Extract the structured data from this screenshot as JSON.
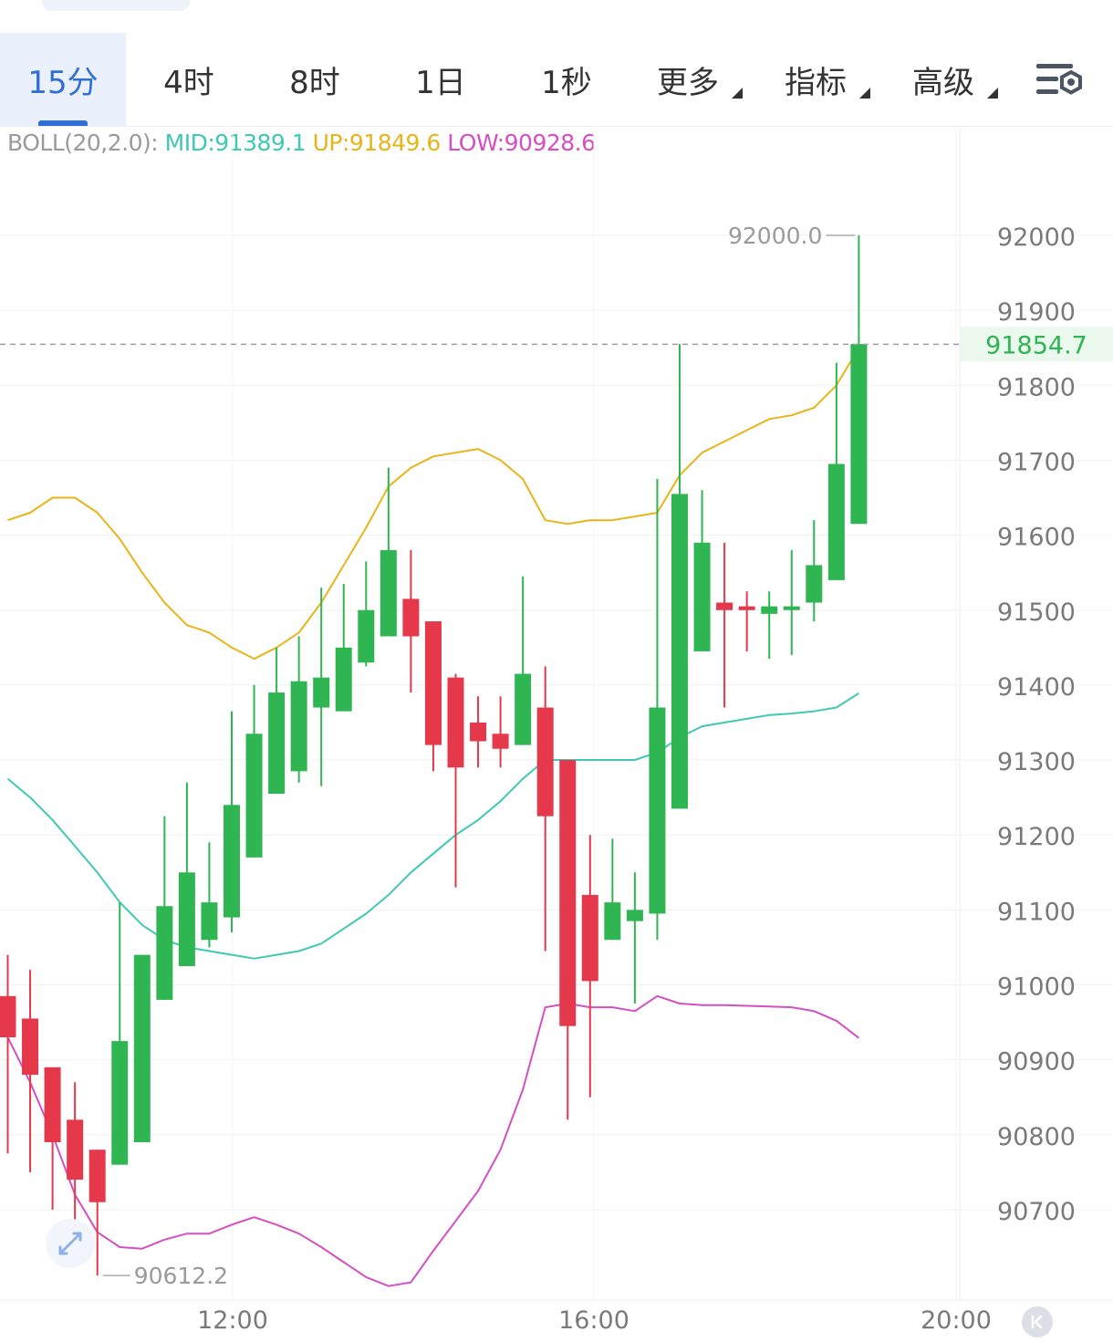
{
  "tabs": [
    {
      "label": "15分",
      "active": true,
      "dropdown": false
    },
    {
      "label": "4时",
      "active": false,
      "dropdown": false
    },
    {
      "label": "8时",
      "active": false,
      "dropdown": false
    },
    {
      "label": "1日",
      "active": false,
      "dropdown": false
    },
    {
      "label": "1秒",
      "active": false,
      "dropdown": false
    },
    {
      "label": "更多",
      "active": false,
      "dropdown": true
    },
    {
      "label": "指标",
      "active": false,
      "dropdown": true
    },
    {
      "label": "高级",
      "active": false,
      "dropdown": true
    }
  ],
  "settings_icon": "chart-settings-icon",
  "indicator": {
    "name": "BOLL(20,2.0):",
    "mid": "MID:91389.1",
    "up": "UP:91849.6",
    "low": "LOW:90928.6"
  },
  "colors": {
    "accent": "#2f6fd6",
    "up_candle": "#2fb552",
    "down_candle": "#e5394b",
    "mid_line": "#3fc9b4",
    "up_line": "#e8b41a",
    "low_line": "#d54fc2",
    "price_label": "#2fb552",
    "muted": "#9a9a9a"
  },
  "chart_data": {
    "type": "candlestick",
    "y_ticks": [
      "92000",
      "91900",
      "91800",
      "91700",
      "91600",
      "91500",
      "91400",
      "91300",
      "91200",
      "91100",
      "91000",
      "90900",
      "90800",
      "90700"
    ],
    "x_ticks": [
      "12:00",
      "16:00",
      "20:00"
    ],
    "current_price": "91854.7",
    "max_label": "92000.0",
    "min_label": "90612.2",
    "grid": true,
    "candles": [
      {
        "o": 90985,
        "h": 91040,
        "l": 90775,
        "c": 90930
      },
      {
        "o": 90955,
        "h": 91020,
        "l": 90750,
        "c": 90880
      },
      {
        "o": 90890,
        "h": 90890,
        "l": 90700,
        "c": 90790
      },
      {
        "o": 90820,
        "h": 90870,
        "l": 90680,
        "c": 90740
      },
      {
        "o": 90780,
        "h": 90780,
        "l": 90612.2,
        "c": 90710
      },
      {
        "o": 90760,
        "h": 91110,
        "l": 90760,
        "c": 90925
      },
      {
        "o": 90790,
        "h": 91030,
        "l": 90790,
        "c": 91040
      },
      {
        "o": 90980,
        "h": 91225,
        "l": 90980,
        "c": 91105
      },
      {
        "o": 91025,
        "h": 91270,
        "l": 91025,
        "c": 91150
      },
      {
        "o": 91060,
        "h": 91190,
        "l": 91050,
        "c": 91110
      },
      {
        "o": 91090,
        "h": 91365,
        "l": 91070,
        "c": 91240
      },
      {
        "o": 91170,
        "h": 91400,
        "l": 91170,
        "c": 91335
      },
      {
        "o": 91255,
        "h": 91450,
        "l": 91255,
        "c": 91390
      },
      {
        "o": 91285,
        "h": 91465,
        "l": 91270,
        "c": 91405
      },
      {
        "o": 91370,
        "h": 91530,
        "l": 91265,
        "c": 91410
      },
      {
        "o": 91365,
        "h": 91535,
        "l": 91365,
        "c": 91450
      },
      {
        "o": 91430,
        "h": 91565,
        "l": 91425,
        "c": 91500
      },
      {
        "o": 91465,
        "h": 91690,
        "l": 91465,
        "c": 91580
      },
      {
        "o": 91515,
        "h": 91580,
        "l": 91390,
        "c": 91465
      },
      {
        "o": 91485,
        "h": 91485,
        "l": 91285,
        "c": 91320
      },
      {
        "o": 91410,
        "h": 91415,
        "l": 91130,
        "c": 91290
      },
      {
        "o": 91350,
        "h": 91385,
        "l": 91290,
        "c": 91325
      },
      {
        "o": 91335,
        "h": 91385,
        "l": 91290,
        "c": 91315
      },
      {
        "o": 91320,
        "h": 91545,
        "l": 91320,
        "c": 91415
      },
      {
        "o": 91370,
        "h": 91425,
        "l": 91045,
        "c": 91225
      },
      {
        "o": 91300,
        "h": 91300,
        "l": 90820,
        "c": 90945
      },
      {
        "o": 91120,
        "h": 91200,
        "l": 90850,
        "c": 91005
      },
      {
        "o": 91060,
        "h": 91195,
        "l": 91060,
        "c": 91110
      },
      {
        "o": 91085,
        "h": 91150,
        "l": 90975,
        "c": 91100
      },
      {
        "o": 91095,
        "h": 91675,
        "l": 91060,
        "c": 91370
      },
      {
        "o": 91235,
        "h": 91855,
        "l": 91235,
        "c": 91655
      },
      {
        "o": 91445,
        "h": 91660,
        "l": 91445,
        "c": 91590
      },
      {
        "o": 91510,
        "h": 91590,
        "l": 91370,
        "c": 91500
      },
      {
        "o": 91505,
        "h": 91525,
        "l": 91445,
        "c": 91500
      },
      {
        "o": 91495,
        "h": 91525,
        "l": 91435,
        "c": 91505
      },
      {
        "o": 91500,
        "h": 91580,
        "l": 91440,
        "c": 91505
      },
      {
        "o": 91510,
        "h": 91620,
        "l": 91485,
        "c": 91560
      },
      {
        "o": 91540,
        "h": 91830,
        "l": 91540,
        "c": 91695
      },
      {
        "o": 91615,
        "h": 92000,
        "l": 91615,
        "c": 91855
      }
    ],
    "boll_up": [
      91620,
      91630,
      91650,
      91650,
      91630,
      91595,
      91550,
      91510,
      91480,
      91470,
      91450,
      91435,
      91450,
      91470,
      91510,
      91560,
      91610,
      91665,
      91690,
      91705,
      91710,
      91715,
      91700,
      91675,
      91620,
      91615,
      91620,
      91620,
      91625,
      91630,
      91680,
      91710,
      91725,
      91740,
      91755,
      91760,
      91770,
      91800,
      91850
    ],
    "boll_mid": [
      91275,
      91250,
      91220,
      91185,
      91150,
      91110,
      91080,
      91060,
      91050,
      91045,
      91040,
      91035,
      91040,
      91045,
      91055,
      91075,
      91095,
      91120,
      91150,
      91175,
      91200,
      91220,
      91245,
      91275,
      91300,
      91300,
      91300,
      91300,
      91300,
      91310,
      91330,
      91345,
      91350,
      91355,
      91360,
      91362,
      91365,
      91370,
      91389
    ],
    "boll_low": [
      90930,
      90870,
      90800,
      90720,
      90670,
      90650,
      90648,
      90660,
      90668,
      90668,
      90680,
      90690,
      90680,
      90668,
      90650,
      90630,
      90610,
      90598,
      90603,
      90645,
      90685,
      90725,
      90780,
      90860,
      90970,
      90975,
      90970,
      90970,
      90965,
      90985,
      90975,
      90973,
      90973,
      90972,
      90971,
      90970,
      90965,
      90952,
      90929
    ]
  }
}
